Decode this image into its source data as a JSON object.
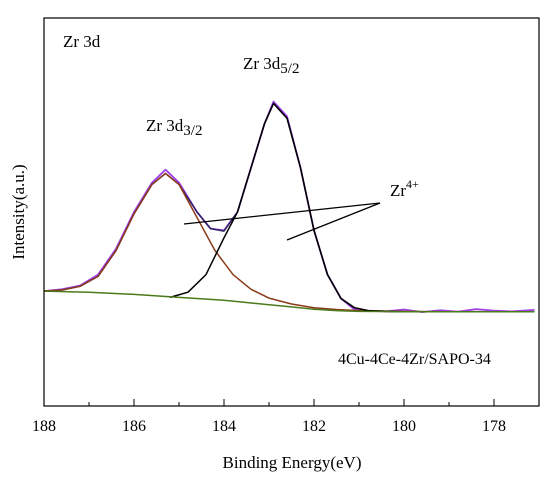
{
  "chart_data": {
    "type": "line",
    "panel_label": "Zr 3d",
    "sample_label": "4Cu-4Ce-4Zr/SAPO-34",
    "xlabel": "Binding Energy(eV)",
    "ylabel": "Intensity(a.u.)",
    "xlim": [
      188,
      177
    ],
    "x_reversed": true,
    "x_ticks": [
      188,
      186,
      184,
      182,
      180,
      178
    ],
    "ylim": [
      0,
      1
    ],
    "y_ticks_shown": false,
    "grid": false,
    "peak_labels": [
      {
        "base": "Zr 3d",
        "sub": "3/2",
        "x": 185.3,
        "y": 0.63
      },
      {
        "base": "Zr 3d",
        "sub": "5/2",
        "x": 182.8,
        "y": 0.8
      }
    ],
    "annotation": {
      "base": "Zr",
      "sup": "4+",
      "x": 181.0,
      "y": 0.53
    },
    "series": [
      {
        "role": "raw",
        "color": "#a040e8",
        "x": [
          188,
          187.6,
          187.2,
          186.8,
          186.4,
          186.0,
          185.6,
          185.3,
          185.0,
          184.6,
          184.3,
          184.0,
          183.7,
          183.4,
          183.1,
          182.9,
          182.6,
          182.3,
          182.0,
          181.7,
          181.4,
          181.1,
          180.8,
          180.4,
          180.0,
          179.6,
          179.2,
          178.8,
          178.4,
          178.0,
          177.6,
          177.1
        ],
        "y": [
          0.285,
          0.29,
          0.3,
          0.33,
          0.4,
          0.5,
          0.58,
          0.615,
          0.58,
          0.5,
          0.455,
          0.45,
          0.5,
          0.62,
          0.74,
          0.8,
          0.76,
          0.62,
          0.45,
          0.33,
          0.265,
          0.235,
          0.232,
          0.23,
          0.235,
          0.228,
          0.233,
          0.229,
          0.236,
          0.232,
          0.23,
          0.234
        ]
      },
      {
        "role": "envelope",
        "color": "#2e2360",
        "x": [
          188,
          187.6,
          187.2,
          186.8,
          186.4,
          186.0,
          185.6,
          185.3,
          185.0,
          184.6,
          184.3,
          184.0,
          183.7,
          183.4,
          183.1,
          182.9,
          182.6,
          182.3,
          182.0,
          181.7,
          181.4,
          181.1,
          180.8,
          180.4,
          180.0,
          179.5,
          179.0,
          178.0,
          177.1
        ],
        "y": [
          0.285,
          0.288,
          0.298,
          0.325,
          0.395,
          0.495,
          0.575,
          0.605,
          0.575,
          0.5,
          0.455,
          0.448,
          0.5,
          0.62,
          0.74,
          0.795,
          0.755,
          0.62,
          0.45,
          0.33,
          0.265,
          0.24,
          0.232,
          0.23,
          0.229,
          0.229,
          0.229,
          0.229,
          0.229
        ]
      },
      {
        "role": "fit-3d3/2",
        "color": "#8b3a1a",
        "x": [
          188,
          187.6,
          187.2,
          186.8,
          186.4,
          186.0,
          185.6,
          185.3,
          185.0,
          184.6,
          184.2,
          183.8,
          183.4,
          183.0,
          182.5,
          182.0,
          181.5,
          181.0,
          180.0,
          179.0,
          177.1
        ],
        "y": [
          0.285,
          0.288,
          0.298,
          0.325,
          0.395,
          0.495,
          0.575,
          0.605,
          0.575,
          0.485,
          0.395,
          0.33,
          0.29,
          0.266,
          0.25,
          0.24,
          0.235,
          0.232,
          0.23,
          0.229,
          0.229
        ]
      },
      {
        "role": "fit-3d5/2",
        "color": "#000000",
        "x": [
          185.2,
          184.8,
          184.4,
          184.0,
          183.7,
          183.4,
          183.1,
          182.9,
          182.6,
          182.3,
          182.0,
          181.7,
          181.4,
          181.1,
          180.8,
          180.4,
          180.0,
          179.0,
          177.1
        ],
        "y": [
          0.268,
          0.282,
          0.33,
          0.43,
          0.5,
          0.62,
          0.74,
          0.795,
          0.755,
          0.62,
          0.45,
          0.33,
          0.265,
          0.24,
          0.232,
          0.23,
          0.229,
          0.229,
          0.229
        ]
      },
      {
        "role": "background",
        "color": "#4a7a1a",
        "x": [
          188,
          187.0,
          186.0,
          185.0,
          184.0,
          183.0,
          182.5,
          182.0,
          181.5,
          181.0,
          180.0,
          179.0,
          178.0,
          177.1
        ],
        "y": [
          0.285,
          0.282,
          0.276,
          0.268,
          0.26,
          0.248,
          0.242,
          0.236,
          0.232,
          0.23,
          0.229,
          0.229,
          0.229,
          0.229
        ]
      }
    ]
  }
}
